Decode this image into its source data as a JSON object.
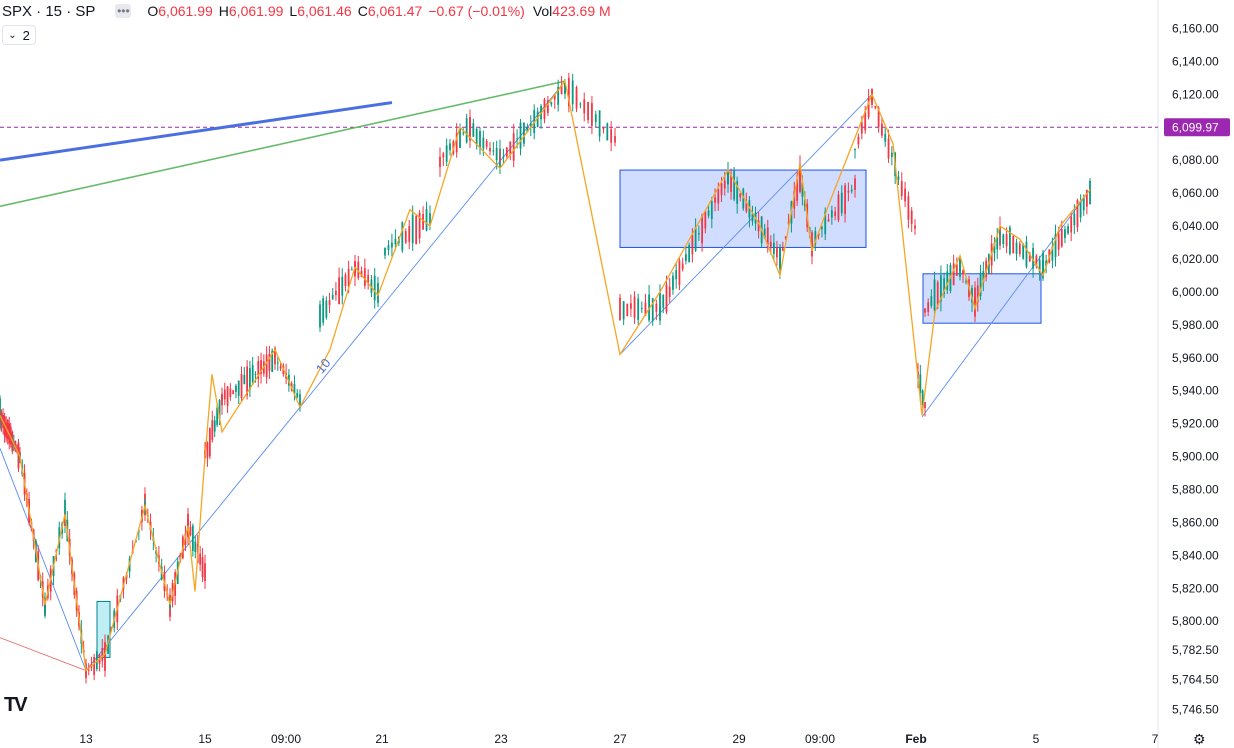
{
  "legend": {
    "symbol": "SPX · 15 · SP",
    "more_icon": "ellipsis-icon",
    "open_label": "O",
    "open": "6,061.99",
    "high_label": "H",
    "high": "6,061.99",
    "low_label": "L",
    "low": "6,061.46",
    "close_label": "C",
    "close": "6,061.47",
    "change": "−0.67 (−0.01%)",
    "vol_label": "Vol",
    "volume": "423.69 M"
  },
  "indicators_toggle": {
    "count": "2",
    "icon": "chevron-down-icon"
  },
  "logo": "TV",
  "settings_icon": "gear-icon",
  "colors": {
    "up": "#089981",
    "down": "#f23645",
    "zigzag": "#f5a623",
    "trend_blue": "#2962ff",
    "trend_green": "#4caf50",
    "price_tag": "#9c27b0"
  },
  "chart_data": {
    "type": "candlestick",
    "price_axis_labels": [
      "6,160.00",
      "6,140.00",
      "6,120.00",
      "6,100.00",
      "6,080.00",
      "6,060.00",
      "6,040.00",
      "6,020.00",
      "6,000.00",
      "5,980.00",
      "5,960.00",
      "5,940.00",
      "5,920.00",
      "5,900.00",
      "5,880.00",
      "5,860.00",
      "5,840.00",
      "5,820.00",
      "5,800.00",
      "5,782.50",
      "5,764.50",
      "5,746.50"
    ],
    "time_axis_labels": [
      "13",
      "15",
      "09:00",
      "21",
      "23",
      "27",
      "29",
      "09:00",
      "Feb",
      "5",
      "7"
    ],
    "current_price_tag": "6,099.97",
    "drawing_label": "10",
    "ylim": [
      5740,
      6170
    ],
    "zigzag_points": [
      [
        0,
        5925
      ],
      [
        20,
        5900
      ],
      [
        45,
        5810
      ],
      [
        65,
        5865
      ],
      [
        86,
        5770
      ],
      [
        105,
        5780
      ],
      [
        145,
        5870
      ],
      [
        170,
        5810
      ],
      [
        188,
        5858
      ],
      [
        195,
        5818
      ],
      [
        205,
        5900
      ],
      [
        212,
        5950
      ],
      [
        222,
        5915
      ],
      [
        275,
        5965
      ],
      [
        300,
        5930
      ],
      [
        330,
        5965
      ],
      [
        355,
        6015
      ],
      [
        378,
        5998
      ],
      [
        410,
        6050
      ],
      [
        430,
        6040
      ],
      [
        460,
        6100
      ],
      [
        500,
        6075
      ],
      [
        565,
        6128
      ],
      [
        620,
        5962
      ],
      [
        660,
        6000
      ],
      [
        728,
        6074
      ],
      [
        760,
        6040
      ],
      [
        780,
        6010
      ],
      [
        800,
        6078
      ],
      [
        812,
        6025
      ],
      [
        830,
        6055
      ],
      [
        872,
        6120
      ],
      [
        893,
        6090
      ],
      [
        922,
        5925
      ],
      [
        935,
        5988
      ],
      [
        960,
        6022
      ],
      [
        975,
        5990
      ],
      [
        1000,
        6040
      ],
      [
        1020,
        6032
      ],
      [
        1043,
        6010
      ],
      [
        1060,
        6040
      ],
      [
        1090,
        6062
      ]
    ],
    "candle_segments": [
      [
        0,
        5925,
        20,
        5900,
        14
      ],
      [
        20,
        5900,
        45,
        5810,
        12
      ],
      [
        45,
        5810,
        65,
        5865,
        8
      ],
      [
        65,
        5865,
        86,
        5770,
        10
      ],
      [
        86,
        5770,
        105,
        5780,
        8
      ],
      [
        105,
        5780,
        145,
        5870,
        14
      ],
      [
        145,
        5870,
        170,
        5810,
        10
      ],
      [
        170,
        5810,
        188,
        5858,
        8
      ],
      [
        188,
        5858,
        205,
        5830,
        8
      ],
      [
        205,
        5900,
        222,
        5935,
        8
      ],
      [
        222,
        5935,
        275,
        5960,
        20
      ],
      [
        275,
        5960,
        300,
        5935,
        10
      ],
      [
        320,
        5985,
        355,
        6015,
        12
      ],
      [
        355,
        6015,
        378,
        6000,
        8
      ],
      [
        385,
        6025,
        430,
        6045,
        14
      ],
      [
        440,
        6080,
        470,
        6100,
        10
      ],
      [
        470,
        6100,
        500,
        6080,
        10
      ],
      [
        500,
        6080,
        565,
        6125,
        20
      ],
      [
        565,
        6125,
        615,
        6092,
        14
      ],
      [
        620,
        5990,
        660,
        5990,
        12
      ],
      [
        660,
        5990,
        728,
        6070,
        22
      ],
      [
        728,
        6070,
        780,
        6020,
        18
      ],
      [
        780,
        6020,
        800,
        6070,
        8
      ],
      [
        800,
        6070,
        812,
        6030,
        6
      ],
      [
        812,
        6030,
        855,
        6065,
        14
      ],
      [
        855,
        6085,
        872,
        6118,
        6
      ],
      [
        872,
        6118,
        915,
        6040,
        14
      ],
      [
        918,
        5950,
        925,
        5930,
        4
      ],
      [
        925,
        5990,
        960,
        6015,
        12
      ],
      [
        960,
        6015,
        975,
        5995,
        6
      ],
      [
        975,
        5995,
        1000,
        6035,
        10
      ],
      [
        1000,
        6035,
        1043,
        6015,
        14
      ],
      [
        1043,
        6015,
        1090,
        6060,
        16
      ]
    ],
    "channel_lines": [
      [
        86,
        5770,
        565,
        6128
      ],
      [
        620,
        5962,
        872,
        6120
      ],
      [
        922,
        5924,
        1090,
        6062
      ],
      [
        0,
        5905,
        86,
        5770
      ],
      [
        0,
        5790,
        86,
        5770
      ]
    ],
    "trend_lines": [
      {
        "color": "blue",
        "from": [
          0,
          6080
        ],
        "to": [
          392,
          6115
        ]
      },
      {
        "color": "green",
        "from": [
          0,
          6052
        ],
        "to": [
          565,
          6128
        ]
      }
    ],
    "zones": [
      {
        "from": [
          620,
          6074
        ],
        "to": [
          866,
          6027
        ]
      },
      {
        "from": [
          923,
          6011
        ],
        "to": [
          1041,
          5981
        ]
      },
      {
        "from": [
          97,
          5812
        ],
        "to": [
          110,
          5778
        ],
        "color": "cyan"
      }
    ],
    "horizontal_line": 6100
  }
}
